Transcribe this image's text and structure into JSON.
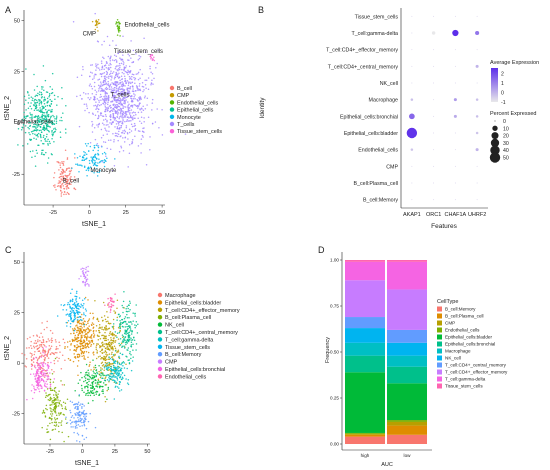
{
  "panels": {
    "a": {
      "letter": "A"
    },
    "b": {
      "letter": "B"
    },
    "c": {
      "letter": "C"
    },
    "d": {
      "letter": "D"
    }
  },
  "chart_data": [
    {
      "panel": "A",
      "type": "scatter",
      "xlabel": "tSNE_1",
      "ylabel": "tSNE_2",
      "xticks": [
        -25,
        0,
        25,
        50
      ],
      "yticks": [
        -25,
        0,
        25,
        50
      ],
      "xlim": [
        -45,
        52
      ],
      "ylim": [
        -40,
        55
      ],
      "series": [
        {
          "name": "B_cell",
          "color": "#F8766D",
          "label": "B_cell",
          "cx": -17,
          "cy": -27,
          "sx": 3,
          "sy": 5,
          "n": 130
        },
        {
          "name": "CMP",
          "color": "#C49A00",
          "label": "CMP",
          "cx": 5,
          "cy": 48,
          "sx": 1,
          "sy": 1.5,
          "n": 20
        },
        {
          "name": "Endothelial_cells",
          "color": "#53B400",
          "label": "Endothelial_cells",
          "cx": 20,
          "cy": 47,
          "sx": 1,
          "sy": 2.5,
          "n": 25
        },
        {
          "name": "Epithelial_cells",
          "color": "#00C094",
          "label": "Epithelial_cells",
          "cx": -33,
          "cy": 3,
          "sx": 6,
          "sy": 8,
          "n": 380
        },
        {
          "name": "Monocyte",
          "color": "#00B6EB",
          "label": "Monocyte",
          "cx": 2,
          "cy": -18,
          "sx": 5,
          "sy": 3.5,
          "n": 110
        },
        {
          "name": "T_cells",
          "color": "#A58AFF",
          "label": "T_cells",
          "cx": 20,
          "cy": 12,
          "sx": 10,
          "sy": 11,
          "n": 950
        },
        {
          "name": "Tissue_stem_cells",
          "color": "#FB61D7",
          "label": "Tissue_stem_cells",
          "cx": 43,
          "cy": 32,
          "sx": 0.8,
          "sy": 1.2,
          "n": 12
        }
      ]
    },
    {
      "panel": "B",
      "type": "dot",
      "xlabel": "Features",
      "ylabel": "Identity",
      "features": [
        "AKAP1",
        "ORC1",
        "CHAF1A",
        "UHRF2"
      ],
      "identities": [
        "B_cell:Memory",
        "B_cell:Plasma_cell",
        "CMP",
        "Endothelial_cells",
        "Epithelial_cells:bladder",
        "Epithelial_cells:bronchial",
        "Macrophage",
        "NK_cell",
        "T_cell:CD4+_central_memory",
        "T_cell:CD4+_effector_memory",
        "T_cell:gamma-delta",
        "Tissue_stem_cells"
      ],
      "rows": [
        {
          "identity": "B_cell:Memory",
          "pct": [
            0,
            0,
            0,
            0
          ],
          "avg": [
            -0.5,
            -0.5,
            -0.5,
            -0.5
          ]
        },
        {
          "identity": "B_cell:Plasma_cell",
          "pct": [
            0,
            0,
            0,
            0
          ],
          "avg": [
            -0.5,
            -0.5,
            -0.5,
            -0.5
          ]
        },
        {
          "identity": "CMP",
          "pct": [
            0,
            0,
            0,
            0
          ],
          "avg": [
            -0.5,
            -0.5,
            -0.5,
            -0.5
          ]
        },
        {
          "identity": "Endothelial_cells",
          "pct": [
            1,
            0,
            0,
            2
          ],
          "avg": [
            -0.3,
            -0.5,
            -0.5,
            0
          ]
        },
        {
          "identity": "Epithelial_cells:bladder",
          "pct": [
            50,
            0,
            0,
            1
          ],
          "avg": [
            2.5,
            -0.5,
            -0.5,
            -0.3
          ]
        },
        {
          "identity": "Epithelial_cells:bronchial",
          "pct": [
            12,
            0,
            2,
            1
          ],
          "avg": [
            1.5,
            -0.5,
            0.2,
            -0.2
          ]
        },
        {
          "identity": "Macrophage",
          "pct": [
            1,
            0,
            2,
            1
          ],
          "avg": [
            -0.2,
            -0.5,
            0.5,
            -0.2
          ]
        },
        {
          "identity": "NK_cell",
          "pct": [
            0,
            0,
            0,
            0
          ],
          "avg": [
            -0.5,
            -0.5,
            -0.5,
            -0.5
          ]
        },
        {
          "identity": "T_cell:CD4+_central_memory",
          "pct": [
            0,
            0,
            0,
            2
          ],
          "avg": [
            -0.5,
            -0.5,
            -0.5,
            0
          ]
        },
        {
          "identity": "T_cell:CD4+_effector_memory",
          "pct": [
            0,
            0,
            0,
            0
          ],
          "avg": [
            -0.5,
            -0.5,
            -0.5,
            -0.5
          ]
        },
        {
          "identity": "T_cell:gamma-delta",
          "pct": [
            0,
            3,
            15,
            5
          ],
          "avg": [
            -0.5,
            -1,
            2.6,
            1.2
          ]
        },
        {
          "identity": "Tissue_stem_cells",
          "pct": [
            0,
            0,
            0,
            0
          ],
          "avg": [
            -0.5,
            -0.5,
            -0.5,
            -0.5
          ]
        }
      ],
      "avg_legend": {
        "title": "Average Expression",
        "ticks": [
          2,
          1,
          0,
          -1
        ],
        "range": [
          -1,
          2.6
        ]
      },
      "pct_legend": {
        "title": "Percent Expressed",
        "values": [
          0,
          10,
          20,
          30,
          40,
          50
        ]
      }
    },
    {
      "panel": "C",
      "type": "scatter",
      "xlabel": "tSNE_1",
      "ylabel": "tSNE_2",
      "xticks": [
        -25,
        0,
        25,
        50
      ],
      "yticks": [
        -25,
        0,
        25,
        50
      ],
      "xlim": [
        -45,
        52
      ],
      "ylim": [
        -40,
        55
      ],
      "series": [
        {
          "name": "Macrophage",
          "color": "#F8766D",
          "cx": -32,
          "cy": 5,
          "sx": 7,
          "sy": 6,
          "n": 180
        },
        {
          "name": "Epithelial_cells:bladder",
          "color": "#DE8C00",
          "cx": 0,
          "cy": 12,
          "sx": 5,
          "sy": 6,
          "n": 280
        },
        {
          "name": "T_cell:CD4+_effector_memory",
          "color": "#B79F00",
          "cx": 20,
          "cy": 8,
          "sx": 5,
          "sy": 9,
          "n": 280
        },
        {
          "name": "B_cell:Plasma_cell",
          "color": "#7CAE00",
          "cx": -22,
          "cy": -22,
          "sx": 4,
          "sy": 6,
          "n": 160
        },
        {
          "name": "NK_cell",
          "color": "#00BA38",
          "cx": 8,
          "cy": -10,
          "sx": 5,
          "sy": 4,
          "n": 140
        },
        {
          "name": "T_cell:CD4+_central_memory",
          "color": "#00C08B",
          "cx": 34,
          "cy": 15,
          "sx": 4,
          "sy": 7,
          "n": 170
        },
        {
          "name": "T_cell:gamma-delta",
          "color": "#00BFC4",
          "cx": 26,
          "cy": -5,
          "sx": 5,
          "sy": 4,
          "n": 150
        },
        {
          "name": "Tissue_stem_cells",
          "color": "#00B4F0",
          "cx": -6,
          "cy": 26,
          "sx": 4,
          "sy": 4,
          "n": 130
        },
        {
          "name": "B_cell:Memory",
          "color": "#619CFF",
          "cx": -3,
          "cy": -26,
          "sx": 4,
          "sy": 5,
          "n": 120
        },
        {
          "name": "CMP",
          "color": "#C77CFF",
          "cx": 2,
          "cy": 43,
          "sx": 1.5,
          "sy": 3,
          "n": 40
        },
        {
          "name": "Epithelial_cells:bronchial",
          "color": "#F564E3",
          "cx": -32,
          "cy": -6,
          "sx": 4,
          "sy": 5,
          "n": 150
        },
        {
          "name": "Endothelial_cells",
          "color": "#FF64B0",
          "cx": 22,
          "cy": 30,
          "sx": 1.5,
          "sy": 2,
          "n": 30
        }
      ]
    },
    {
      "panel": "D",
      "type": "bar",
      "stacked": true,
      "xlabel": "AUC",
      "ylabel": "Frequency",
      "categories": [
        "high",
        "low"
      ],
      "ylim": [
        0,
        1
      ],
      "yticks": [
        "0.00",
        "0.25",
        "0.50",
        "0.75",
        "1.00"
      ],
      "legend_title": "CellType",
      "series": [
        {
          "name": "B_cell:Memory",
          "color": "#F8766D",
          "values": [
            0.04,
            0.05
          ]
        },
        {
          "name": "B_cell:Plasma_cell",
          "color": "#DE8C00",
          "values": [
            0.01,
            0.05
          ]
        },
        {
          "name": "CMP",
          "color": "#B79F00",
          "values": [
            0.005,
            0.02
          ]
        },
        {
          "name": "Endothelial_cells",
          "color": "#7CAE00",
          "values": [
            0.005,
            0.01
          ]
        },
        {
          "name": "Epithelial_cells:bladder",
          "color": "#00BA38",
          "values": [
            0.33,
            0.2
          ]
        },
        {
          "name": "Epithelial_cells:bronchial",
          "color": "#00C08B",
          "values": [
            0.09,
            0.09
          ]
        },
        {
          "name": "Macrophage",
          "color": "#00BFC4",
          "values": [
            0.07,
            0.06
          ]
        },
        {
          "name": "NK_cell",
          "color": "#00B4F0",
          "values": [
            0.08,
            0.07
          ]
        },
        {
          "name": "T_cell:CD4+_central_memory",
          "color": "#619CFF",
          "values": [
            0.06,
            0.07
          ]
        },
        {
          "name": "T_cell:CD4+_effector_memory",
          "color": "#C77CFF",
          "values": [
            0.2,
            0.22
          ]
        },
        {
          "name": "T_cell:gamma-delta",
          "color": "#F564E3",
          "values": [
            0.1,
            0.15
          ]
        },
        {
          "name": "Tissue_stem_cells",
          "color": "#FF64B0",
          "values": [
            0.01,
            0.01
          ]
        }
      ]
    }
  ]
}
